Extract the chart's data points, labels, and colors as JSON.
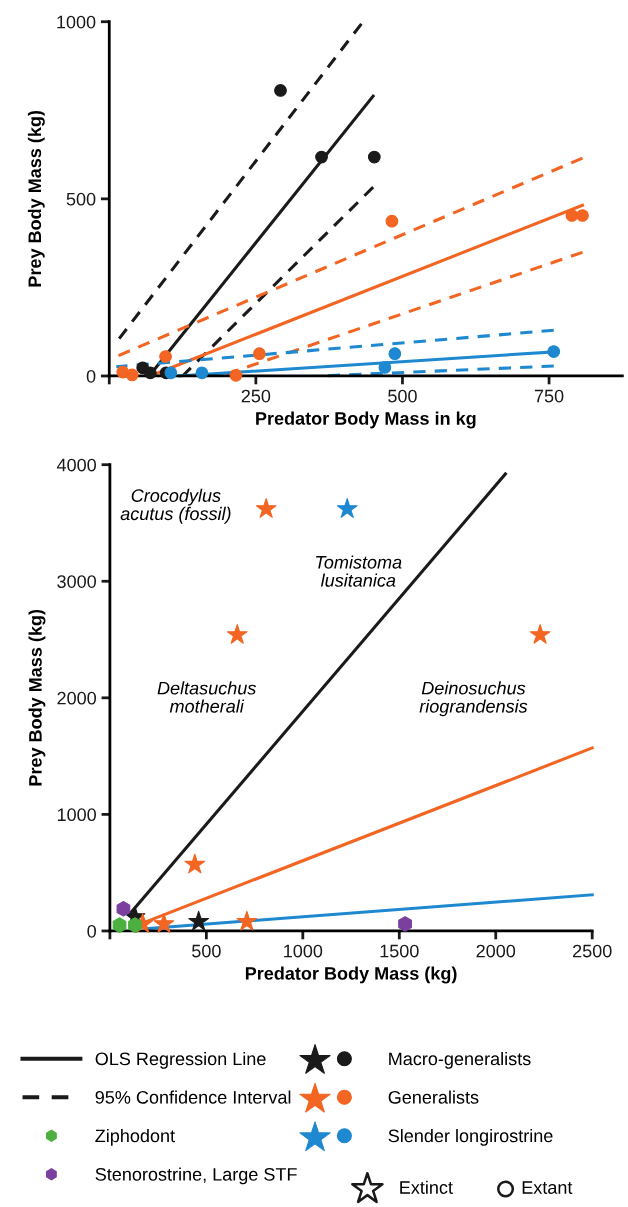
{
  "chart_data": [
    {
      "type": "scatter",
      "xlabel": "Predator Body Mass in kg",
      "ylabel": "Prey Body Mass (kg)",
      "xlim": [
        0,
        875
      ],
      "ylim": [
        0,
        1000
      ],
      "xticks": [
        {
          "value": 0,
          "label": null
        },
        250,
        500,
        750
      ],
      "yticks": [
        {
          "value": 0,
          "label": "0"
        },
        500,
        1000
      ],
      "legend": "bottom",
      "grid": false,
      "series": [
        {
          "type": "line",
          "name": "OLS Regression Line",
          "color": "#1a1a1a",
          "line_style": "solid",
          "x": [
            68,
            450
          ],
          "values": [
            0,
            790
          ]
        },
        {
          "type": "line",
          "color": "#1a1a1a",
          "line_style": "dashed",
          "x": [
            12,
            430
          ],
          "values": [
            95,
            994
          ]
        },
        {
          "type": "line",
          "name": "95% Confidence Interval",
          "color": "#1a1a1a",
          "line_style": "dashed",
          "x": [
            125,
            450
          ],
          "values": [
            0,
            533
          ]
        },
        {
          "type": "line",
          "color": "#f26522",
          "line_style": "dashed",
          "x": [
            12,
            807
          ],
          "values": [
            55,
            615
          ]
        },
        {
          "type": "line",
          "color": "#f26522",
          "line_style": "dashed",
          "x": [
            190,
            807
          ],
          "values": [
            0,
            349
          ]
        },
        {
          "type": "line",
          "color": "#f26522",
          "line_style": "solid",
          "x": [
            70,
            807
          ],
          "values": [
            0,
            482
          ]
        },
        {
          "type": "line",
          "color": "#1e88d0",
          "line_style": "dashed",
          "x": [
            12,
            758
          ],
          "values": [
            26,
            129
          ]
        },
        {
          "type": "line",
          "color": "#1e88d0",
          "line_style": "dashed",
          "x": [
            360,
            758
          ],
          "values": [
            0,
            28
          ]
        },
        {
          "type": "line",
          "color": "#1e88d0",
          "line_style": "solid",
          "x": [
            120,
            758
          ],
          "values": [
            0,
            68
          ]
        },
        {
          "name": "Macro-generalists",
          "color": "#1a1a1a",
          "marker": "circle",
          "x": [
            292,
            362,
            452,
            57,
            70,
            97
          ],
          "values": [
            806,
            618,
            618,
            23,
            9,
            9
          ]
        },
        {
          "name": "Generalists",
          "color": "#f26522",
          "marker": "circle",
          "x": [
            23,
            39,
            96,
            256,
            216,
            482,
            789,
            807
          ],
          "values": [
            11,
            3,
            55,
            63,
            2,
            437,
            453,
            453
          ]
        },
        {
          "name": "Slender longirostrine",
          "color": "#1e88d0",
          "marker": "circle",
          "x": [
            105,
            158,
            470,
            487,
            758
          ],
          "values": [
            9,
            9,
            24,
            63,
            69
          ]
        }
      ]
    },
    {
      "type": "scatter",
      "xlabel": "Predator Body Mass (kg)",
      "ylabel": "Prey Body Mass (kg)",
      "xlim": [
        0,
        2500
      ],
      "ylim": [
        0,
        4000
      ],
      "xticks": [
        {
          "value": 0,
          "label": null
        },
        500,
        1000,
        1500,
        2000,
        2500
      ],
      "yticks": [
        {
          "value": 0,
          "label": "0"
        },
        1000,
        2000,
        3000,
        4000
      ],
      "legend": "bottom",
      "grid": false,
      "annotations": [
        {
          "text": "Crocodylus\nacutus (fossil)",
          "x": 810,
          "y": 3620
        },
        {
          "text": "Tomistoma\nlusitanica",
          "x": 1230,
          "y": 3620
        },
        {
          "text": "Deltasuchus\nmotherali",
          "x": 660,
          "y": 2540
        },
        {
          "text": "Deinosuchus\nriograndensis",
          "x": 2230,
          "y": 2540
        },
        "Extinct",
        "Extant"
      ],
      "series": [
        {
          "type": "line",
          "color": "#1a1a1a",
          "line_style": "solid",
          "x": [
            100,
            2050
          ],
          "values": [
            140,
            3920
          ]
        },
        {
          "type": "line",
          "color": "#f26522",
          "line_style": "solid",
          "x": [
            190,
            2500
          ],
          "values": [
            80,
            1570
          ]
        },
        {
          "type": "line",
          "color": "#1e88d0",
          "line_style": "solid",
          "x": [
            190,
            2500
          ],
          "values": [
            20,
            310
          ]
        },
        {
          "name": "Macro-generalists",
          "color": "#1a1a1a",
          "marker": "star",
          "x": [
            460,
            130
          ],
          "values": [
            80,
            120
          ]
        },
        {
          "name": "Generalists",
          "color": "#f26522",
          "marker": "star",
          "x": [
            810,
            660,
            2230,
            440,
            280,
            710,
            170
          ],
          "values": [
            3620,
            2540,
            2540,
            570,
            60,
            80,
            60
          ]
        },
        {
          "name": "Slender longirostrine",
          "color": "#1e88d0",
          "marker": "star",
          "x": [
            1230
          ],
          "values": [
            3620
          ]
        },
        {
          "name": "Ziphodont",
          "color": "#4caf3f",
          "x": [
            50,
            130
          ],
          "values": [
            50,
            50
          ]
        },
        {
          "name": "Stenorostrine, Large STF",
          "color": "#7b3fa0",
          "x": [
            70,
            1530
          ],
          "values": [
            190,
            60
          ]
        }
      ]
    }
  ]
}
